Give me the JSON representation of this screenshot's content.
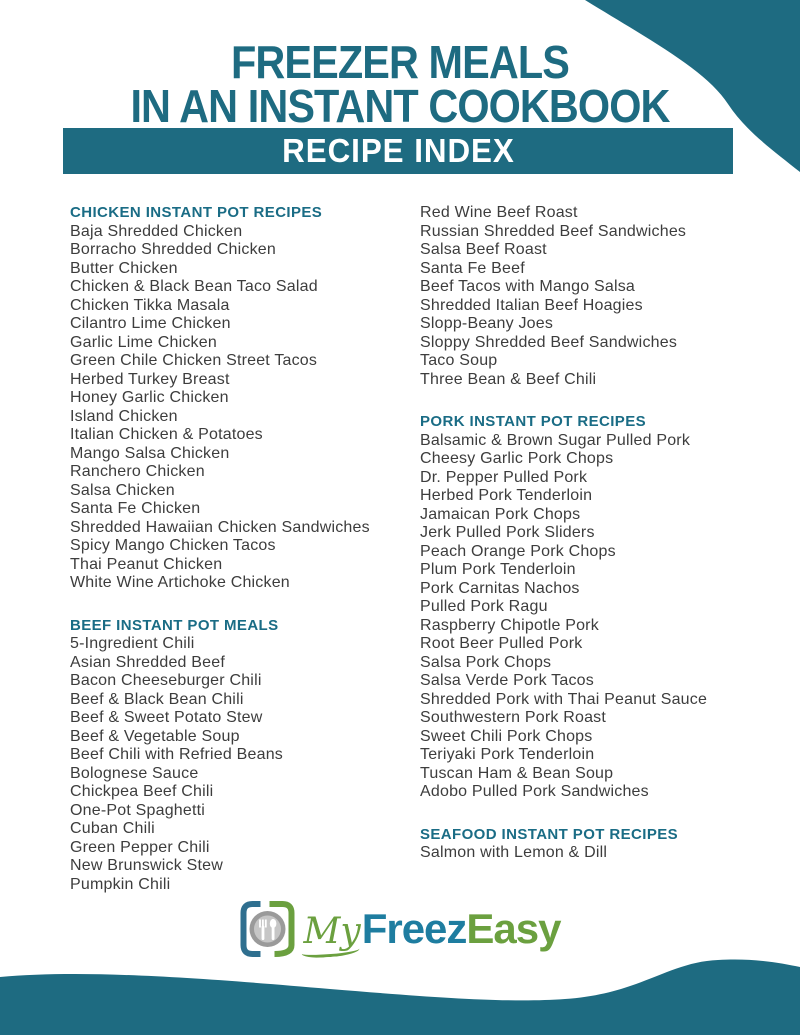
{
  "page": {
    "title_line1": "FREEZER MEALS",
    "title_line2": "IN AN INSTANT COOKBOOK",
    "banner": "RECIPE INDEX"
  },
  "colors": {
    "teal": "#1e6b81",
    "section_header_teal": "#1a6c85",
    "body_text": "#3d3d3d",
    "logo_blue": "#2f6f8f",
    "logo_green": "#6ba03f",
    "logo_freez_teal": "#1e7da0"
  },
  "columns": {
    "left": [
      {
        "header": "CHICKEN INSTANT POT RECIPES",
        "items": [
          "Baja Shredded Chicken",
          "Borracho Shredded Chicken",
          "Butter Chicken",
          "Chicken & Black Bean Taco Salad",
          "Chicken Tikka Masala",
          "Cilantro Lime Chicken",
          "Garlic Lime Chicken",
          "Green Chile Chicken Street Tacos",
          "Herbed Turkey Breast",
          "Honey Garlic Chicken",
          "Island Chicken",
          "Italian Chicken & Potatoes",
          "Mango Salsa Chicken",
          "Ranchero Chicken",
          "Salsa Chicken",
          "Santa Fe Chicken",
          "Shredded Hawaiian Chicken Sandwiches",
          "Spicy Mango Chicken Tacos",
          "Thai Peanut Chicken",
          "White Wine Artichoke Chicken"
        ]
      },
      {
        "header": "BEEF INSTANT POT MEALS",
        "items": [
          "5-Ingredient Chili",
          "Asian Shredded Beef",
          "Bacon Cheeseburger Chili",
          "Beef & Black Bean Chili",
          "Beef & Sweet Potato Stew",
          "Beef & Vegetable Soup",
          "Beef Chili with Refried Beans",
          "Bolognese Sauce",
          "Chickpea Beef Chili",
          "One-Pot Spaghetti",
          "Cuban Chili",
          "Green Pepper Chili",
          "New Brunswick Stew",
          "Pumpkin Chili"
        ]
      }
    ],
    "right": [
      {
        "header": null,
        "items": [
          "Red Wine Beef Roast",
          "Russian Shredded Beef Sandwiches",
          "Salsa Beef Roast",
          "Santa Fe Beef",
          "Beef Tacos with Mango Salsa",
          "Shredded Italian Beef Hoagies",
          "Slopp-Beany Joes",
          "Sloppy Shredded Beef Sandwiches",
          "Taco Soup",
          "Three Bean & Beef Chili"
        ]
      },
      {
        "header": "PORK INSTANT POT RECIPES",
        "items": [
          "Balsamic & Brown Sugar Pulled Pork",
          "Cheesy Garlic Pork Chops",
          "Dr. Pepper Pulled Pork",
          "Herbed Pork Tenderloin",
          "Jamaican Pork Chops",
          "Jerk Pulled Pork Sliders",
          "Peach Orange Pork Chops",
          "Plum Pork Tenderloin",
          "Pork Carnitas Nachos",
          "Pulled Pork Ragu",
          "Raspberry Chipotle Pork",
          "Root Beer Pulled Pork",
          "Salsa Pork Chops",
          "Salsa Verde Pork Tacos",
          "Shredded Pork with Thai Peanut Sauce",
          "Southwestern Pork Roast",
          "Sweet Chili Pork Chops",
          "Teriyaki Pork Tenderloin",
          "Tuscan Ham & Bean Soup",
          "Adobo Pulled Pork Sandwiches"
        ]
      },
      {
        "header": "SEAFOOD INSTANT POT RECIPES",
        "items": [
          "Salmon with Lemon & Dill"
        ]
      }
    ]
  },
  "logo": {
    "my": "My",
    "freez": "Freez",
    "easy": "Easy"
  }
}
